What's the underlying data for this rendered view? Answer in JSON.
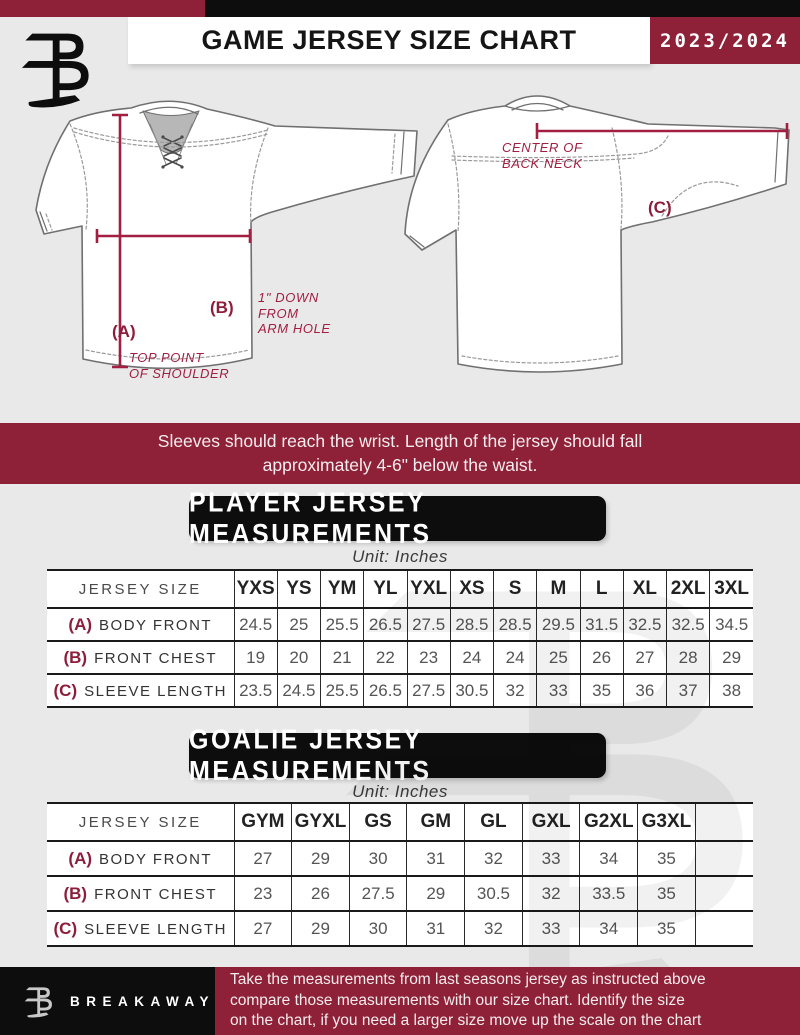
{
  "header": {
    "title": "GAME JERSEY SIZE CHART",
    "season": "2023/2024",
    "logo": "breakaway-monogram"
  },
  "diagram": {
    "front": {
      "a_label": "(A)",
      "a_caption": "TOP POINT\nOF SHOULDER",
      "b_label": "(B)",
      "b_caption": "1\" DOWN\nFROM\nARM HOLE"
    },
    "back": {
      "c_label": "(C)",
      "c_caption": "CENTER OF\nBACK NECK"
    }
  },
  "banner": {
    "text": "Sleeves should reach the wrist. Length of the jersey should fall\napproximately 4-6\" below the waist."
  },
  "player_section": {
    "title": "PLAYER JERSEY MEASUREMENTS",
    "unit": "Unit: Inches"
  },
  "player_table": {
    "size_header": "JERSEY SIZE",
    "columns": [
      "YXS",
      "YS",
      "YM",
      "YL",
      "YXL",
      "XS",
      "S",
      "M",
      "L",
      "XL",
      "2XL",
      "3XL"
    ],
    "rows": [
      {
        "prefix": "(A)",
        "label": "BODY FRONT",
        "values": [
          "24.5",
          "25",
          "25.5",
          "26.5",
          "27.5",
          "28.5",
          "28.5",
          "29.5",
          "31.5",
          "32.5",
          "32.5",
          "34.5"
        ]
      },
      {
        "prefix": "(B)",
        "label": "FRONT CHEST",
        "values": [
          "19",
          "20",
          "21",
          "22",
          "23",
          "24",
          "24",
          "25",
          "26",
          "27",
          "28",
          "29"
        ]
      },
      {
        "prefix": "(C)",
        "label": "SLEEVE LENGTH",
        "values": [
          "23.5",
          "24.5",
          "25.5",
          "26.5",
          "27.5",
          "30.5",
          "32",
          "33",
          "35",
          "36",
          "37",
          "38"
        ]
      }
    ]
  },
  "goalie_section": {
    "title": "GOALIE JERSEY MEASUREMENTS",
    "unit": "Unit: Inches"
  },
  "goalie_table": {
    "size_header": "JERSEY SIZE",
    "columns": [
      "GYM",
      "GYXL",
      "GS",
      "GM",
      "GL",
      "GXL",
      "G2XL",
      "G3XL",
      ""
    ],
    "rows": [
      {
        "prefix": "(A)",
        "label": "BODY FRONT",
        "values": [
          "27",
          "29",
          "30",
          "31",
          "32",
          "33",
          "34",
          "35",
          ""
        ]
      },
      {
        "prefix": "(B)",
        "label": "FRONT CHEST",
        "values": [
          "23",
          "26",
          "27.5",
          "29",
          "30.5",
          "32",
          "33.5",
          "35",
          ""
        ]
      },
      {
        "prefix": "(C)",
        "label": "SLEEVE LENGTH",
        "values": [
          "27",
          "29",
          "30",
          "31",
          "32",
          "33",
          "34",
          "35",
          ""
        ]
      }
    ]
  },
  "footer": {
    "brand": "BREAKAWAY",
    "text": "Take the measurements from last seasons jersey as instructed above\ncompare those measurements  with our size chart. Identify the size\non the chart, if you need a larger size move up the scale on the chart"
  },
  "colors": {
    "maroon": "#8E2137",
    "maroon-dark": "#8D1E3B",
    "annotation": "#A21F42",
    "black": "#0D0D0D",
    "page_bg": "#E9E9E9",
    "line": "#1A1A1A"
  }
}
